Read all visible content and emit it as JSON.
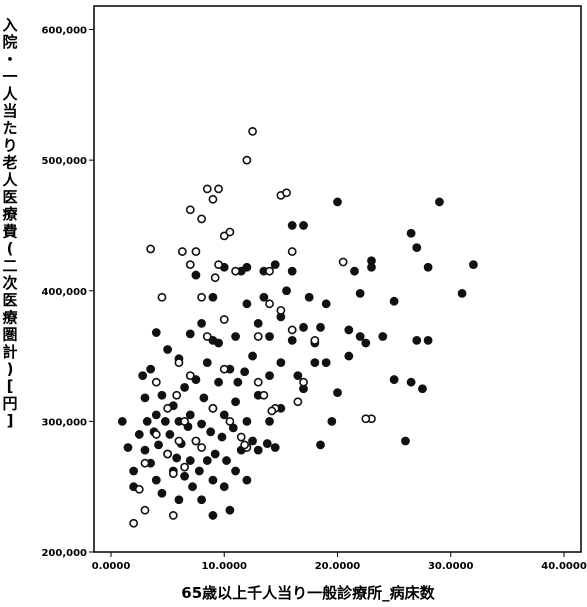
{
  "chart_data": {
    "type": "scatter",
    "xlabel": "65歳以上千人当り一般診療所_病床数",
    "ylabel": "入院・一人当たり老人医療費(二次医療圏計)[円]",
    "xlim": [
      -1.5,
      41.5
    ],
    "ylim": [
      200000,
      618000
    ],
    "x_ticks": [
      0,
      10,
      20,
      30,
      40
    ],
    "x_tick_labels": [
      "0.0000",
      "10.0000",
      "20.0000",
      "30.0000",
      "40.0000"
    ],
    "y_ticks": [
      200000,
      300000,
      400000,
      500000,
      600000
    ],
    "y_tick_labels": [
      "200,000",
      "300,000",
      "400,000",
      "500,000",
      "600,000"
    ],
    "grid": false,
    "series": [
      {
        "marker": "filled-circle",
        "color": "#111111",
        "points": [
          [
            1,
            300000
          ],
          [
            1.5,
            280000
          ],
          [
            2,
            262000
          ],
          [
            2,
            250000
          ],
          [
            2.5,
            290000
          ],
          [
            2.8,
            335000
          ],
          [
            3,
            278000
          ],
          [
            3,
            318000
          ],
          [
            3.2,
            300000
          ],
          [
            3.5,
            268000
          ],
          [
            3.5,
            340000
          ],
          [
            3.8,
            292000
          ],
          [
            4,
            305000
          ],
          [
            4,
            255000
          ],
          [
            4,
            368000
          ],
          [
            4.2,
            282000
          ],
          [
            4.5,
            320000
          ],
          [
            4.5,
            245000
          ],
          [
            4.8,
            300000
          ],
          [
            5,
            275000
          ],
          [
            5,
            355000
          ],
          [
            5.2,
            290000
          ],
          [
            5.5,
            262000
          ],
          [
            5.5,
            312000
          ],
          [
            5.8,
            272000
          ],
          [
            6,
            300000
          ],
          [
            6,
            240000
          ],
          [
            6,
            348000
          ],
          [
            6.2,
            283000
          ],
          [
            6.5,
            258000
          ],
          [
            6.5,
            326000
          ],
          [
            6.8,
            296000
          ],
          [
            7,
            270000
          ],
          [
            7,
            305000
          ],
          [
            7,
            367000
          ],
          [
            7.2,
            250000
          ],
          [
            7.5,
            285000
          ],
          [
            7.5,
            332000
          ],
          [
            7.8,
            262000
          ],
          [
            8,
            298000
          ],
          [
            8,
            375000
          ],
          [
            8,
            240000
          ],
          [
            8.2,
            318000
          ],
          [
            8.5,
            270000
          ],
          [
            8.5,
            345000
          ],
          [
            8.8,
            292000
          ],
          [
            9,
            255000
          ],
          [
            9,
            310000
          ],
          [
            9,
            395000
          ],
          [
            9,
            228000
          ],
          [
            9.2,
            275000
          ],
          [
            9.5,
            330000
          ],
          [
            9.5,
            360000
          ],
          [
            9.8,
            288000
          ],
          [
            10,
            250000
          ],
          [
            10,
            305000
          ],
          [
            10,
            418000
          ],
          [
            10.2,
            270000
          ],
          [
            10.5,
            340000
          ],
          [
            10.5,
            232000
          ],
          [
            10.8,
            295000
          ],
          [
            11,
            262000
          ],
          [
            11,
            365000
          ],
          [
            11,
            315000
          ],
          [
            11.5,
            278000
          ],
          [
            11.5,
            415000
          ],
          [
            11.8,
            338000
          ],
          [
            12,
            255000
          ],
          [
            12,
            300000
          ],
          [
            12,
            390000
          ],
          [
            12,
            418000
          ],
          [
            12.5,
            285000
          ],
          [
            12.5,
            350000
          ],
          [
            13,
            320000
          ],
          [
            13,
            375000
          ],
          [
            13,
            278000
          ],
          [
            13.5,
            415000
          ],
          [
            13.5,
            395000
          ],
          [
            14,
            335000
          ],
          [
            14,
            300000
          ],
          [
            14,
            365000
          ],
          [
            14.5,
            420000
          ],
          [
            14.5,
            280000
          ],
          [
            15,
            380000
          ],
          [
            15,
            345000
          ],
          [
            15,
            310000
          ],
          [
            15.5,
            400000
          ],
          [
            16,
            362000
          ],
          [
            16,
            415000
          ],
          [
            16,
            450000
          ],
          [
            16.5,
            335000
          ],
          [
            17,
            372000
          ],
          [
            17,
            325000
          ],
          [
            17,
            450000
          ],
          [
            17.5,
            395000
          ],
          [
            18,
            360000
          ],
          [
            18,
            345000
          ],
          [
            18.5,
            282000
          ],
          [
            18.5,
            372000
          ],
          [
            19,
            390000
          ],
          [
            19,
            345000
          ],
          [
            19.5,
            300000
          ],
          [
            20,
            468000
          ],
          [
            20,
            322000
          ],
          [
            21,
            370000
          ],
          [
            21,
            350000
          ],
          [
            21.5,
            415000
          ],
          [
            22,
            398000
          ],
          [
            22,
            365000
          ],
          [
            22.5,
            360000
          ],
          [
            23,
            418000
          ],
          [
            23,
            423000
          ],
          [
            24,
            365000
          ],
          [
            25,
            332000
          ],
          [
            25,
            392000
          ],
          [
            26,
            285000
          ],
          [
            26.5,
            444000
          ],
          [
            26.5,
            330000
          ],
          [
            27,
            362000
          ],
          [
            27,
            433000
          ],
          [
            27.5,
            325000
          ],
          [
            28,
            418000
          ],
          [
            28,
            362000
          ],
          [
            29,
            468000
          ],
          [
            31,
            398000
          ],
          [
            32,
            420000
          ],
          [
            7.5,
            412000
          ],
          [
            9,
            362000
          ],
          [
            11.2,
            330000
          ],
          [
            13.8,
            283000
          ]
        ]
      },
      {
        "marker": "open-circle",
        "color": "#111111",
        "points": [
          [
            2,
            222000
          ],
          [
            2.5,
            248000
          ],
          [
            3,
            268000
          ],
          [
            3,
            232000
          ],
          [
            3.5,
            432000
          ],
          [
            4,
            330000
          ],
          [
            4,
            290000
          ],
          [
            4.5,
            395000
          ],
          [
            5,
            310000
          ],
          [
            5,
            275000
          ],
          [
            5.5,
            260000
          ],
          [
            5.5,
            228000
          ],
          [
            6,
            285000
          ],
          [
            6,
            345000
          ],
          [
            6.5,
            300000
          ],
          [
            6.5,
            265000
          ],
          [
            7,
            420000
          ],
          [
            7,
            462000
          ],
          [
            7,
            335000
          ],
          [
            7.5,
            285000
          ],
          [
            7.5,
            430000
          ],
          [
            8,
            455000
          ],
          [
            8,
            280000
          ],
          [
            8,
            395000
          ],
          [
            8.5,
            478000
          ],
          [
            8.5,
            365000
          ],
          [
            9,
            470000
          ],
          [
            9,
            310000
          ],
          [
            9.5,
            478000
          ],
          [
            9.5,
            420000
          ],
          [
            10,
            442000
          ],
          [
            10,
            378000
          ],
          [
            10,
            340000
          ],
          [
            10.5,
            445000
          ],
          [
            10.5,
            300000
          ],
          [
            11,
            415000
          ],
          [
            11.5,
            288000
          ],
          [
            12,
            500000
          ],
          [
            12,
            280000
          ],
          [
            12.5,
            522000
          ],
          [
            13,
            365000
          ],
          [
            13,
            330000
          ],
          [
            13.5,
            320000
          ],
          [
            14,
            390000
          ],
          [
            14,
            415000
          ],
          [
            14.5,
            310000
          ],
          [
            15,
            473000
          ],
          [
            15,
            385000
          ],
          [
            15.5,
            475000
          ],
          [
            16,
            370000
          ],
          [
            16,
            430000
          ],
          [
            16.5,
            315000
          ],
          [
            17,
            330000
          ],
          [
            18,
            362000
          ],
          [
            20.5,
            422000
          ],
          [
            23,
            302000
          ],
          [
            22.5,
            302000
          ],
          [
            9.2,
            410000
          ],
          [
            6.3,
            430000
          ],
          [
            11.8,
            282000
          ],
          [
            14.2,
            308000
          ],
          [
            5.8,
            320000
          ]
        ]
      }
    ]
  }
}
